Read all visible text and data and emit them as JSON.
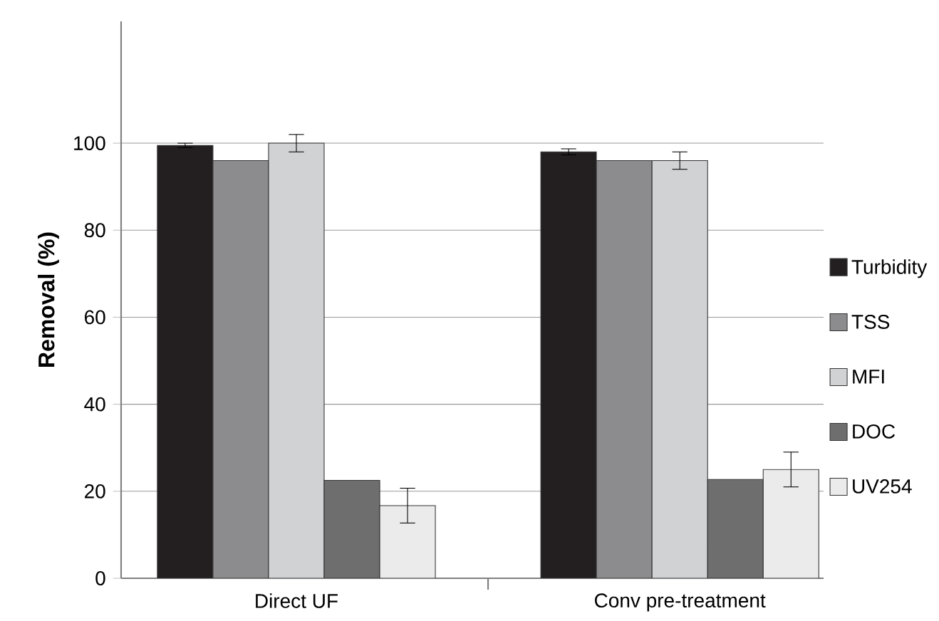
{
  "chart_data": {
    "type": "bar",
    "ylabel": "**Removal (%)**",
    "categories": [
      "Direct UF",
      "Conv pre-treatment"
    ],
    "ylim": [
      0,
      128
    ],
    "yticks": [
      0,
      20,
      40,
      60,
      80,
      100
    ],
    "grid": "y",
    "legend": "right",
    "series": [
      {
        "name": "Turbidity",
        "color": "#231f20",
        "values": [
          99.5,
          98
        ],
        "errors": [
          0.5,
          0.7
        ]
      },
      {
        "name": "TSS",
        "color": "#8c8c8e",
        "values": [
          96,
          96
        ]
      },
      {
        "name": "MFI",
        "color": "#d1d2d4",
        "values": [
          100,
          96
        ],
        "errors": [
          2,
          2
        ]
      },
      {
        "name": "DOC",
        "color": "#6e6e6e",
        "values": [
          22.5,
          22.7
        ]
      },
      {
        "name": "UV254",
        "color": "#ebebeb",
        "values": [
          16.7,
          25
        ],
        "errors": [
          4,
          4
        ]
      }
    ]
  }
}
